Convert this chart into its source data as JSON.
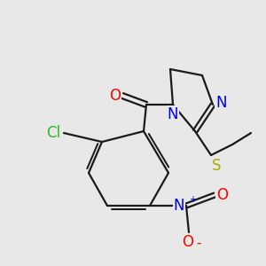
{
  "background_color": "#e8e8e8",
  "bond_color": "#1a1a1a",
  "figsize": [
    3.0,
    3.0
  ],
  "dpi": 100,
  "atom_colors": {
    "O": "#ff0000",
    "N": "#0000ee",
    "Cl": "#22bb22",
    "S": "#aaaa00",
    "C": "#1a1a1a"
  },
  "lw": 1.6
}
